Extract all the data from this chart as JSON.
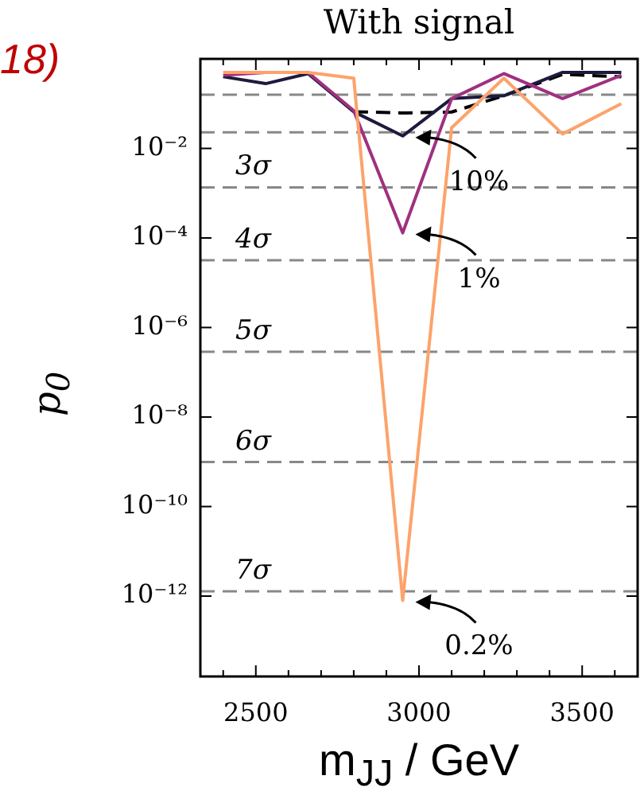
{
  "chart_data": {
    "type": "line",
    "title": "With signal",
    "xlabel": "m$_{JJ}$ / GeV",
    "ylabel": "p$_{0}$",
    "log": "y",
    "grid": false,
    "legend": false,
    "marker": "none",
    "x": [
      2400,
      2530,
      2660,
      2800,
      2950,
      3100,
      3260,
      3440,
      3620
    ],
    "xlim": [
      2330,
      3670
    ],
    "xticks": [
      {
        "value": 2400,
        "label": null
      },
      2500,
      {
        "value": 2600,
        "label": null
      },
      {
        "value": 2700,
        "label": null
      },
      {
        "value": 2800,
        "label": null
      },
      {
        "value": 2900,
        "label": null
      },
      3000,
      {
        "value": 3100,
        "label": null
      },
      {
        "value": 3200,
        "label": null
      },
      {
        "value": 3300,
        "label": null
      },
      {
        "value": 3400,
        "label": null
      },
      3500,
      {
        "value": 3600,
        "label": null
      }
    ],
    "ylim": [
      1.6e-14,
      1
    ],
    "yticks": [
      {
        "value": 0.01,
        "label": "10⁻²"
      },
      {
        "value": 0.0001,
        "label": "10⁻⁴"
      },
      {
        "value": 1e-06,
        "label": "10⁻⁶"
      },
      {
        "value": 1e-08,
        "label": "10⁻⁸"
      },
      {
        "value": 1e-10,
        "label": "10⁻¹⁰"
      },
      {
        "value": 1e-12,
        "label": "10⁻¹²"
      }
    ],
    "series": [
      {
        "color": "#000000",
        "line_style": "dashed",
        "values": [
          null,
          null,
          null,
          0.066,
          0.062,
          0.065,
          0.15,
          0.45,
          0.4
        ]
      },
      {
        "name": "10%",
        "color": "#1d1a3e",
        "line_style": "solid",
        "values": [
          0.4,
          0.28,
          0.47,
          0.066,
          0.019,
          0.13,
          0.15,
          0.5,
          0.5
        ]
      },
      {
        "name": "1%",
        "color": "#a0307f",
        "line_style": "solid",
        "values": [
          0.43,
          0.5,
          0.5,
          0.07,
          0.00013,
          0.13,
          0.47,
          0.13,
          0.43
        ]
      },
      {
        "name": "0.2%",
        "color": "#fca36b",
        "line_style": "solid",
        "values": [
          0.5,
          0.5,
          0.5,
          0.37,
          8e-13,
          0.029,
          0.37,
          0.021,
          0.1
        ]
      }
    ],
    "ref_lines": [
      {
        "axis": "y",
        "value": 0.159,
        "label": null,
        "color": "#888888",
        "line_style": "dashed"
      },
      {
        "axis": "y",
        "value": 0.0228,
        "label": null,
        "color": "#888888",
        "line_style": "dashed"
      },
      {
        "axis": "y",
        "value": 0.00135,
        "label": "3σ",
        "color": "#888888",
        "line_style": "dashed"
      },
      {
        "axis": "y",
        "value": 3.17e-05,
        "label": "4σ",
        "color": "#888888",
        "line_style": "dashed"
      },
      {
        "axis": "y",
        "value": 2.87e-07,
        "label": "5σ",
        "color": "#888888",
        "line_style": "dashed"
      },
      {
        "axis": "y",
        "value": 9.87e-10,
        "label": "6σ",
        "color": "#888888",
        "line_style": "dashed"
      },
      {
        "axis": "y",
        "value": 1.28e-12,
        "label": "7σ",
        "color": "#888888",
        "line_style": "dashed"
      }
    ],
    "annotations": [
      "18)"
    ]
  }
}
